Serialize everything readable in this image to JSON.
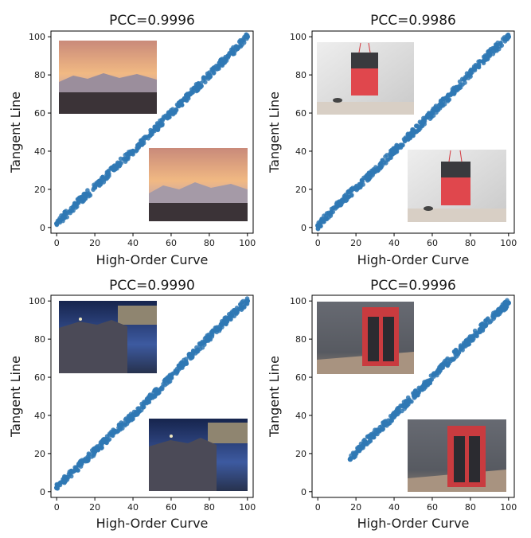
{
  "colors": {
    "scatter": "#2f78b4",
    "frame": "#000000"
  },
  "chart_data": [
    {
      "type": "scatter",
      "title": "PCC=0.9996",
      "xlabel": "High-Order Curve",
      "ylabel": "Tangent Line",
      "xlim": [
        -3,
        103
      ],
      "ylim": [
        -3,
        103
      ],
      "xticks": [
        0,
        20,
        40,
        60,
        80,
        100
      ],
      "yticks": [
        0,
        20,
        40,
        60,
        80,
        100
      ],
      "series": [
        {
          "x": [
            0,
            10,
            20,
            30,
            40,
            50,
            60,
            70,
            80,
            90,
            100
          ],
          "y": [
            2,
            12,
            21,
            31,
            40,
            50,
            60,
            70,
            80,
            90,
            100
          ]
        }
      ],
      "insets": [
        "sunset-mountains-photo-upper",
        "sunset-mountains-photo-lower"
      ]
    },
    {
      "type": "scatter",
      "title": "PCC=0.9986",
      "xlabel": "High-Order Curve",
      "ylabel": "Tangent Line",
      "xlim": [
        -3,
        103
      ],
      "ylim": [
        -3,
        103
      ],
      "xticks": [
        0,
        20,
        40,
        60,
        80,
        100
      ],
      "yticks": [
        0,
        20,
        40,
        60,
        80,
        100
      ],
      "series": [
        {
          "x": [
            0,
            10,
            20,
            30,
            40,
            50,
            60,
            70,
            80,
            90,
            100
          ],
          "y": [
            1,
            11,
            21,
            30,
            40,
            50,
            60,
            70,
            81,
            91,
            100
          ]
        }
      ],
      "insets": [
        "red-bag-photo-upper",
        "red-bag-photo-lower"
      ]
    },
    {
      "type": "scatter",
      "title": "PCC=0.9990",
      "xlabel": "High-Order Curve",
      "ylabel": "Tangent Line",
      "xlim": [
        -3,
        103
      ],
      "ylim": [
        -3,
        103
      ],
      "xticks": [
        0,
        20,
        40,
        60,
        80,
        100
      ],
      "yticks": [
        0,
        20,
        40,
        60,
        80,
        100
      ],
      "series": [
        {
          "x": [
            0,
            10,
            20,
            30,
            40,
            50,
            60,
            70,
            80,
            90,
            100
          ],
          "y": [
            2,
            12,
            21,
            31,
            40,
            50,
            60,
            71,
            81,
            91,
            100
          ]
        }
      ],
      "insets": [
        "cliff-town-night-photo-upper",
        "cliff-town-night-photo-lower"
      ]
    },
    {
      "type": "scatter",
      "title": "PCC=0.9996",
      "xlabel": "High-Order Curve",
      "ylabel": "Tangent Line",
      "xlim": [
        -3,
        103
      ],
      "ylim": [
        -3,
        103
      ],
      "xticks": [
        0,
        20,
        40,
        60,
        80,
        100
      ],
      "yticks": [
        0,
        20,
        40,
        60,
        80,
        100
      ],
      "series": [
        {
          "x": [
            17,
            25,
            35,
            45,
            55,
            65,
            75,
            85,
            95,
            100
          ],
          "y": [
            17,
            26,
            35,
            45,
            55,
            65,
            75,
            85,
            95,
            99
          ]
        }
      ],
      "insets": [
        "red-trash-bin-photo-upper",
        "red-trash-bin-photo-lower"
      ]
    }
  ]
}
